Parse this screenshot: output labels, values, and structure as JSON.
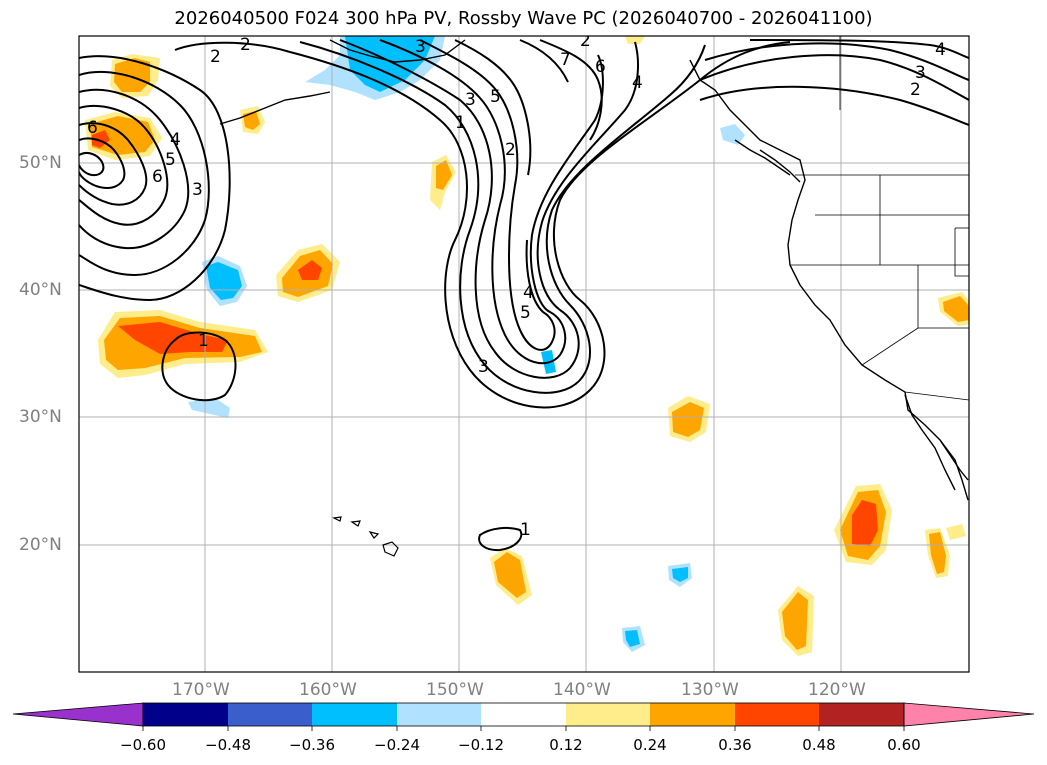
{
  "title": "2026040500 F024 300 hPa PV, Rossby Wave PC (2026040700 - 2026041100)",
  "map": {
    "lat_labels": [
      "50°N",
      "40°N",
      "30°N",
      "20°N"
    ],
    "lon_labels": [
      "170°W",
      "160°W",
      "150°W",
      "140°W",
      "130°W",
      "120°W"
    ],
    "contour_labels": [
      "2",
      "6",
      "3",
      "2",
      "4",
      "5",
      "6",
      "3",
      "2",
      "1",
      "2",
      "3",
      "5",
      "4",
      "7",
      "6",
      "1",
      "4",
      "5",
      "3",
      "1",
      "3",
      "2",
      "4"
    ]
  },
  "colorbar": {
    "ticks": [
      "−0.60",
      "−0.48",
      "−0.36",
      "−0.24",
      "−0.12",
      "0.12",
      "0.24",
      "0.36",
      "0.48",
      "0.60"
    ],
    "colors": [
      "#9932cc",
      "#00008b",
      "#3a5fcd",
      "#00bfff",
      "#b0e2ff",
      "#ffffff",
      "#ffec8b",
      "#ffa500",
      "#ff4500",
      "#b22222",
      "#ff82ab"
    ]
  },
  "colors": {
    "positive_light": "#ffec8b",
    "positive_mid": "#ffa500",
    "positive_strong": "#ff4500",
    "negative_light": "#b0e2ff",
    "negative_mid": "#00bfff",
    "contour": "#000000",
    "grid": "#b0b0b0"
  }
}
